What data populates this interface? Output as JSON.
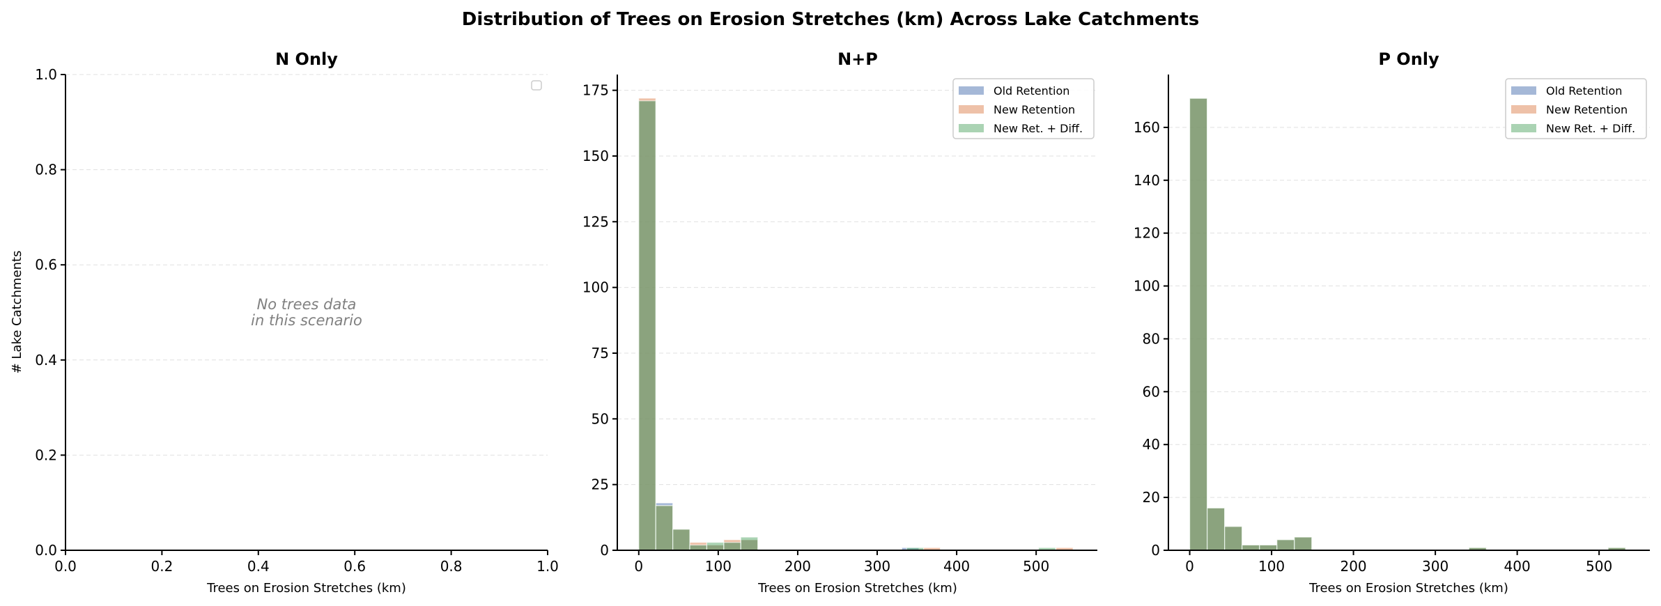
{
  "figure": {
    "title": "Distribution of Trees on Erosion Stretches (km) Across Lake Catchments",
    "ylabel": "# Lake Catchments",
    "xlabel": "Trees on Erosion Stretches (km)"
  },
  "series_colors": {
    "Old Retention": "#4c72b0",
    "New Retention": "#dd8452",
    "New Ret. + Diff.": "#55a868"
  },
  "legend": [
    "Old Retention",
    "New Retention",
    "New Ret. + Diff."
  ],
  "panels": [
    {
      "title": "N Only",
      "empty_message_line1": "No trees data",
      "empty_message_line2": "in this scenario"
    },
    {
      "title": "N+P"
    },
    {
      "title": "P Only"
    }
  ],
  "chart_data": [
    {
      "type": "bar",
      "title": "N Only",
      "xlabel": "Trees on Erosion Stretches (km)",
      "ylabel": "# Lake Catchments",
      "xlim": [
        0.0,
        1.0
      ],
      "ylim": [
        0.0,
        1.0
      ],
      "xticks": [
        0.0,
        0.2,
        0.4,
        0.6,
        0.8,
        1.0
      ],
      "xtick_labels": [
        "0.0",
        "0.2",
        "0.4",
        "0.6",
        "0.8",
        "1.0"
      ],
      "yticks": [
        0.0,
        0.2,
        0.4,
        0.6,
        0.8,
        1.0
      ],
      "ytick_labels": [
        "0.0",
        "0.2",
        "0.4",
        "0.6",
        "0.8",
        "1.0"
      ],
      "grid": "y-dashed",
      "legend_position": "upper right (empty)",
      "annotation": "No trees data\nin this scenario",
      "series": []
    },
    {
      "type": "bar",
      "subtype": "overlaid histogram",
      "title": "N+P",
      "xlabel": "Trees on Erosion Stretches (km)",
      "ylabel": "",
      "xlim": [
        -27,
        577
      ],
      "ylim": [
        0,
        181
      ],
      "xticks": [
        0,
        100,
        200,
        300,
        400,
        500
      ],
      "xtick_labels": [
        "0",
        "100",
        "200",
        "300",
        "400",
        "500"
      ],
      "yticks": [
        0,
        25,
        50,
        75,
        100,
        125,
        150,
        175
      ],
      "ytick_labels": [
        "0",
        "25",
        "50",
        "75",
        "100",
        "125",
        "150",
        "175"
      ],
      "grid": "y-dashed",
      "legend_position": "upper right",
      "bin_width": 21.4,
      "series": [
        {
          "name": "Old Retention",
          "bins": [
            [
              0,
              171
            ],
            [
              21.4,
              18
            ],
            [
              42.8,
              8
            ],
            [
              64.2,
              2
            ],
            [
              85.6,
              2
            ],
            [
              107,
              3
            ],
            [
              128.4,
              4
            ],
            [
              331,
              1
            ]
          ]
        },
        {
          "name": "New Retention",
          "bins": [
            [
              0,
              172
            ],
            [
              21.4,
              17
            ],
            [
              42.8,
              8
            ],
            [
              64.2,
              3
            ],
            [
              85.6,
              2
            ],
            [
              107,
              4
            ],
            [
              128.4,
              4
            ],
            [
              358,
              1
            ],
            [
              525,
              1
            ]
          ]
        },
        {
          "name": "New Ret. + Diff.",
          "bins": [
            [
              0,
              171
            ],
            [
              21.4,
              17
            ],
            [
              42.8,
              8
            ],
            [
              64.2,
              2
            ],
            [
              85.6,
              3
            ],
            [
              107,
              3
            ],
            [
              128.4,
              5
            ],
            [
              337,
              1
            ],
            [
              503,
              1
            ]
          ]
        }
      ]
    },
    {
      "type": "bar",
      "subtype": "overlaid histogram",
      "title": "P Only",
      "xlabel": "Trees on Erosion Stretches (km)",
      "ylabel": "",
      "xlim": [
        -26,
        562
      ],
      "ylim": [
        0,
        180
      ],
      "xticks": [
        0,
        100,
        200,
        300,
        400,
        500
      ],
      "xtick_labels": [
        "0",
        "100",
        "200",
        "300",
        "400",
        "500"
      ],
      "yticks": [
        0,
        20,
        40,
        60,
        80,
        100,
        120,
        140,
        160
      ],
      "ytick_labels": [
        "0",
        "20",
        "40",
        "60",
        "80",
        "100",
        "120",
        "140",
        "160"
      ],
      "grid": "y-dashed",
      "legend_position": "upper right",
      "bin_width": 21.3,
      "note": "All three series identical (overlap renders as one dark green)",
      "series": [
        {
          "name": "Old Retention",
          "bins": [
            [
              0,
              171
            ],
            [
              21.3,
              16
            ],
            [
              42.6,
              9
            ],
            [
              63.9,
              2
            ],
            [
              85.2,
              2
            ],
            [
              106.5,
              4
            ],
            [
              127.8,
              5
            ],
            [
              341,
              1
            ],
            [
              511,
              1
            ]
          ]
        },
        {
          "name": "New Retention",
          "bins": [
            [
              0,
              171
            ],
            [
              21.3,
              16
            ],
            [
              42.6,
              9
            ],
            [
              63.9,
              2
            ],
            [
              85.2,
              2
            ],
            [
              106.5,
              4
            ],
            [
              127.8,
              5
            ],
            [
              341,
              1
            ],
            [
              511,
              1
            ]
          ]
        },
        {
          "name": "New Ret. + Diff.",
          "bins": [
            [
              0,
              171
            ],
            [
              21.3,
              16
            ],
            [
              42.6,
              9
            ],
            [
              63.9,
              2
            ],
            [
              85.2,
              2
            ],
            [
              106.5,
              4
            ],
            [
              127.8,
              5
            ],
            [
              341,
              1
            ],
            [
              511,
              1
            ]
          ]
        }
      ]
    }
  ]
}
